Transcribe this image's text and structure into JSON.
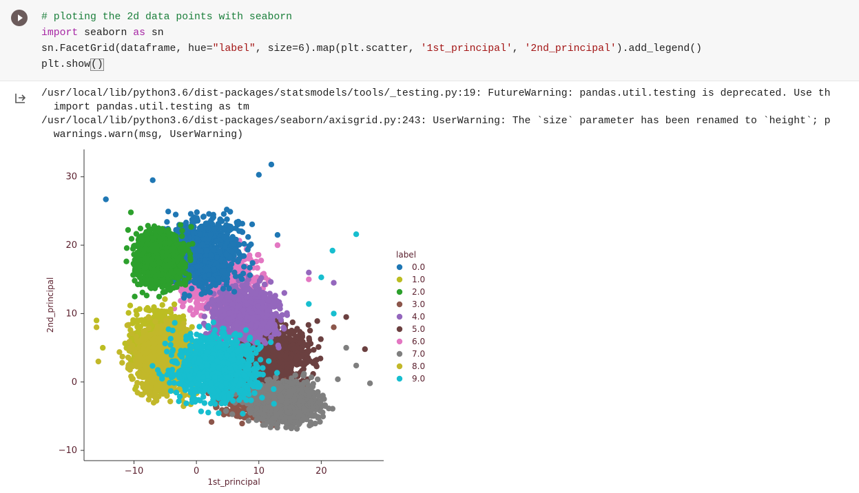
{
  "cell": {
    "run_icon": "play-icon",
    "lines": [
      [
        {
          "t": "# ploting the 2d data points with seaborn",
          "c": "comment"
        }
      ],
      [
        {
          "t": "import",
          "c": "kw"
        },
        {
          "t": " seaborn ",
          "c": ""
        },
        {
          "t": "as",
          "c": "kw"
        },
        {
          "t": " sn",
          "c": ""
        }
      ],
      [
        {
          "t": "sn.FacetGrid(dataframe, hue=",
          "c": ""
        },
        {
          "t": "\"label\"",
          "c": "str"
        },
        {
          "t": ", size=6).map(plt.scatter, ",
          "c": ""
        },
        {
          "t": "'1st_principal'",
          "c": "str"
        },
        {
          "t": ", ",
          "c": ""
        },
        {
          "t": "'2nd_principal'",
          "c": "str"
        },
        {
          "t": ").add_legend()",
          "c": ""
        }
      ],
      [
        {
          "t": "plt.show",
          "c": ""
        },
        {
          "t": "()",
          "c": "cursor"
        }
      ]
    ]
  },
  "output": {
    "icon": "output-arrow-icon",
    "stderr_lines": [
      "/usr/local/lib/python3.6/dist-packages/statsmodels/tools/_testing.py:19: FutureWarning: pandas.util.testing is deprecated. Use th",
      "  import pandas.util.testing as tm",
      "/usr/local/lib/python3.6/dist-packages/seaborn/axisgrid.py:243: UserWarning: The `size` parameter has been renamed to `height`; p",
      "  warnings.warn(msg, UserWarning)"
    ]
  },
  "chart_data": {
    "type": "scatter",
    "xlabel": "1st_principal",
    "ylabel": "2nd_principal",
    "xlim": [
      -18,
      30
    ],
    "ylim": [
      -11.5,
      34
    ],
    "xticks": [
      "−10",
      "0",
      "10",
      "20"
    ],
    "xtick_values": [
      -10,
      0,
      10,
      20
    ],
    "yticks": [
      "−10",
      "0",
      "10",
      "20",
      "30"
    ],
    "ytick_values": [
      -10,
      0,
      10,
      20,
      30
    ],
    "grid": false,
    "legend": {
      "title": "label",
      "placement": "right",
      "entries": [
        "0.0",
        "1.0",
        "2.0",
        "3.0",
        "4.0",
        "5.0",
        "6.0",
        "7.0",
        "8.0",
        "9.0"
      ]
    },
    "series": [
      {
        "name": "0.0",
        "color": "#1f77b4",
        "cluster": {
          "cx": 1,
          "cy": 19,
          "sx": 6,
          "sy": 5
        },
        "outliers": [
          [
            -14.5,
            26.7
          ],
          [
            12,
            31.8
          ],
          [
            10,
            30.3
          ],
          [
            -7,
            29.5
          ],
          [
            13,
            21.5
          ]
        ]
      },
      {
        "name": "1.0",
        "color": "#bcbd22",
        "cluster": {
          "cx": -6,
          "cy": 5,
          "sx": 4,
          "sy": 5
        },
        "outliers": [
          [
            -16,
            9
          ],
          [
            -15,
            5
          ]
        ]
      },
      {
        "name": "2.0",
        "color": "#2ca02c",
        "cluster": {
          "cx": -6,
          "cy": 18,
          "sx": 4,
          "sy": 4
        },
        "outliers": [
          [
            -10.5,
            24.8
          ]
        ]
      },
      {
        "name": "3.0",
        "color": "#8c564b",
        "cluster": {
          "cx": 10,
          "cy": -2,
          "sx": 6,
          "sy": 3
        },
        "outliers": [
          [
            16,
            6
          ],
          [
            22,
            8
          ]
        ]
      },
      {
        "name": "4.0",
        "color": "#9467bd",
        "cluster": {
          "cx": 8,
          "cy": 10,
          "sx": 5,
          "sy": 4
        },
        "outliers": [
          [
            18,
            16
          ],
          [
            22,
            14.5
          ]
        ]
      },
      {
        "name": "5.0",
        "color": "#6b4040",
        "cluster": {
          "cx": 12,
          "cy": 4,
          "sx": 6,
          "sy": 4
        },
        "outliers": [
          [
            24,
            9.5
          ],
          [
            27,
            4.8
          ]
        ]
      },
      {
        "name": "6.0",
        "color": "#e377c2",
        "cluster": {
          "cx": 3,
          "cy": 15,
          "sx": 6,
          "sy": 4
        },
        "outliers": [
          [
            18,
            15
          ],
          [
            13,
            20
          ]
        ]
      },
      {
        "name": "7.0",
        "color": "#7f7f7f",
        "cluster": {
          "cx": 14,
          "cy": -3,
          "sx": 6,
          "sy": 3
        },
        "outliers": [
          [
            27.8,
            -0.2
          ],
          [
            25.6,
            2.4
          ],
          [
            24,
            5
          ]
        ]
      },
      {
        "name": "8.0",
        "color": "#c2b82a",
        "cluster": {
          "cx": -5,
          "cy": 3,
          "sx": 5,
          "sy": 5
        },
        "outliers": [
          [
            -15.7,
            3
          ],
          [
            -16,
            8
          ]
        ]
      },
      {
        "name": "9.0",
        "color": "#17becf",
        "cluster": {
          "cx": 3,
          "cy": 2,
          "sx": 7,
          "sy": 5
        },
        "outliers": [
          [
            25.6,
            21.6
          ],
          [
            21.8,
            19.2
          ],
          [
            20,
            15.3
          ],
          [
            18,
            11.4
          ],
          [
            22,
            10
          ]
        ]
      }
    ]
  }
}
